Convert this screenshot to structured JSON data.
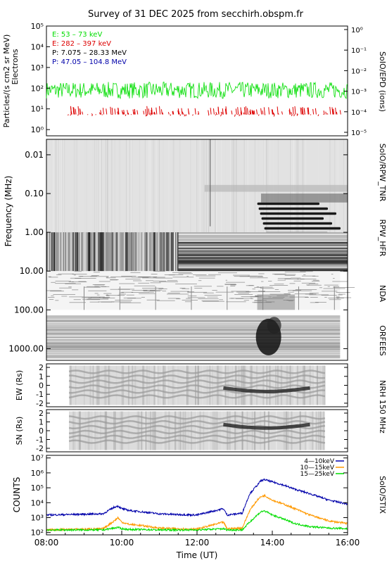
{
  "title": "Survey of 31 DEC 2025 from secchirh.obspm.fr",
  "colors": {
    "green": "#00dd00",
    "red": "#dd0000",
    "black": "#000000",
    "blue": "#0000aa",
    "orange": "#ff9900"
  },
  "chart_data": [
    {
      "type": "line",
      "panel": "particles",
      "ylabel": "Particles/(s cm2 sr MeV)",
      "ylabel2": "Electrons",
      "y_scale": "log",
      "ylim": [
        0.5,
        100000
      ],
      "y_ticks": [
        "10⁰",
        "10¹",
        "10²",
        "10³",
        "10⁴",
        "10⁵"
      ],
      "y2_ticks": [
        "10⁻⁵",
        "10⁻⁴",
        "10⁻³",
        "10⁻²",
        "10⁻¹",
        "10⁰"
      ],
      "right_label": "SoIO/EPD (ions)",
      "legend": [
        {
          "label": "E: 53 – 73 keV",
          "color": "#00dd00"
        },
        {
          "label": "E: 282 – 397 keV",
          "color": "#dd0000"
        },
        {
          "label": "P: 7.075 – 28.33 MeV",
          "color": "#000000"
        },
        {
          "label": "P: 47.05 – 104.8 MeV",
          "color": "#0000aa"
        }
      ],
      "series": [
        {
          "name": "E: 53 – 73 keV",
          "level": 80,
          "spread": 2.5
        },
        {
          "name": "E: 282 – 397 keV",
          "level": 6,
          "spread": 1.8
        }
      ]
    },
    {
      "type": "heatmap",
      "panel": "frequency",
      "ylabel": "Frequency (MHz)",
      "y_scale": "log",
      "ylim": [
        0.004,
        2000
      ],
      "y_ticks": [
        "0.01",
        "0.10",
        "1.00",
        "10.00",
        "100.00",
        "1000.00"
      ],
      "right_labels": [
        "SoIO/RPW_TNR",
        "RPW_HFR",
        "NDA",
        "ORFEES"
      ]
    },
    {
      "type": "heatmap",
      "panel": "nrh_ew",
      "ylabel": "EW (Rs)",
      "ylim": [
        -2.4,
        2.4
      ],
      "y_ticks": [
        "2",
        "1",
        "0",
        "-1",
        "-2"
      ],
      "right_label": "NRH 150 MHz"
    },
    {
      "type": "heatmap",
      "panel": "nrh_sn",
      "ylabel": "SN (Rs)",
      "ylim": [
        -2.4,
        2.4
      ],
      "y_ticks": [
        "2",
        "1",
        "0",
        "-1",
        "-2"
      ]
    },
    {
      "type": "line",
      "panel": "stix",
      "ylabel": "COUNTS",
      "y_scale": "log",
      "ylim": [
        70,
        15000000
      ],
      "y_ticks": [
        "10²",
        "10³",
        "10⁴",
        "10⁵",
        "10⁶",
        "10⁷"
      ],
      "right_label": "SoIO/STIX",
      "xlabel": "Time (UT)",
      "x_ticks": [
        "08:00",
        "10:00",
        "12:00",
        "14:00",
        "16:00"
      ],
      "xlim": [
        8,
        16
      ],
      "series": [
        {
          "name": "4—10keV",
          "color": "#0000aa",
          "x": [
            8.0,
            9.5,
            9.8,
            9.9,
            10.0,
            10.2,
            10.5,
            11.0,
            11.5,
            12.0,
            12.7,
            12.8,
            13.2,
            13.4,
            13.6,
            13.7,
            13.8,
            14.0,
            14.3,
            14.6,
            15.0,
            15.5,
            16.0
          ],
          "y": [
            1500,
            1800,
            5000,
            6000,
            4000,
            3000,
            2500,
            1800,
            1600,
            1500,
            4000,
            1500,
            2000,
            40000,
            150000,
            300000,
            350000,
            250000,
            150000,
            80000,
            40000,
            15000,
            8000
          ]
        },
        {
          "name": "10—15keV",
          "color": "#ff9900",
          "x": [
            8.0,
            9.5,
            9.8,
            9.9,
            10.0,
            10.2,
            10.5,
            11.0,
            11.5,
            12.0,
            12.7,
            12.8,
            13.2,
            13.4,
            13.6,
            13.7,
            13.8,
            14.0,
            14.3,
            14.6,
            15.0,
            15.5,
            16.0
          ],
          "y": [
            150,
            180,
            600,
            1000,
            500,
            350,
            300,
            200,
            180,
            170,
            500,
            180,
            200,
            3000,
            15000,
            25000,
            30000,
            15000,
            8000,
            4000,
            1500,
            600,
            400
          ]
        },
        {
          "name": "15—25keV",
          "color": "#00dd00",
          "x": [
            8.0,
            9.5,
            9.8,
            9.9,
            10.0,
            10.2,
            10.5,
            11.0,
            11.5,
            12.0,
            12.7,
            12.8,
            13.2,
            13.4,
            13.6,
            13.7,
            13.8,
            14.0,
            14.3,
            14.6,
            15.0,
            15.5,
            16.0
          ],
          "y": [
            150,
            150,
            200,
            220,
            180,
            160,
            160,
            150,
            150,
            150,
            180,
            150,
            150,
            500,
            1500,
            2500,
            2800,
            1500,
            800,
            400,
            250,
            200,
            180
          ]
        }
      ]
    }
  ]
}
